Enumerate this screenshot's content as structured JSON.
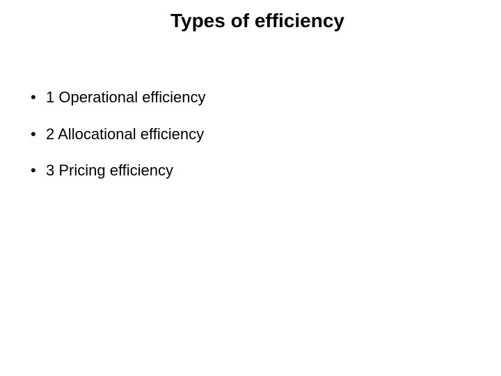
{
  "slide": {
    "title": "Types of efficiency",
    "bullets": [
      "1 Operational efficiency",
      "2 Allocational efficiency",
      "3 Pricing efficiency"
    ],
    "background_color": "#ffffff",
    "text_color": "#000000",
    "title_fontsize": 28,
    "title_fontweight": "bold",
    "bullet_fontsize": 22,
    "font_family": "Arial"
  }
}
